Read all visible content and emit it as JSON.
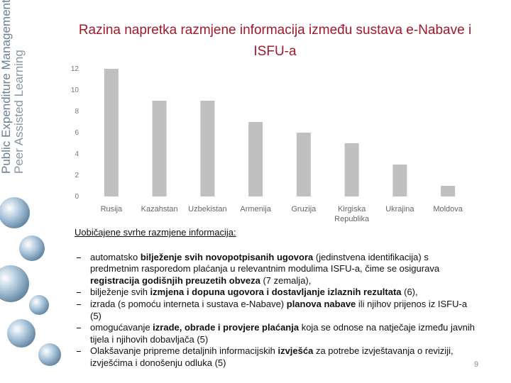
{
  "sidebar": {
    "line1": "Public Expenditure Management",
    "line2": "Peer Assisted Learning"
  },
  "chart_data": {
    "type": "bar",
    "title": "Razina napretka razmjene informacija između sustava e-Nabave i ISFU-a",
    "categories": [
      "Rusija",
      "Kazahstan",
      "Uzbekistan",
      "Armenija",
      "Gruzija",
      "Kirgiska Republika",
      "Ukrajina",
      "Moldova"
    ],
    "values": [
      12,
      9,
      9,
      7,
      6,
      5,
      3,
      1
    ],
    "color": "#c0c0c0",
    "ylim": [
      0,
      12
    ],
    "yticks": [
      0,
      2,
      4,
      6,
      8,
      10,
      12
    ],
    "grid": false
  },
  "body": {
    "heading": "Uobičajene svrhe razmjene informacija:",
    "items": [
      {
        "segments": [
          {
            "text": "automatsko ",
            "bold": false
          },
          {
            "text": "bilježenje svih novopotpisanih ugovora",
            "bold": true
          },
          {
            "text": " (jedinstvena identifikacija) s predmetnim rasporedom plaćanja u relevantnim modulima ISFU-a, čime se osigurava ",
            "bold": false
          },
          {
            "text": "registracija godišnjih preuzetih obveza",
            "bold": true
          },
          {
            "text": " (7 zemalja),",
            "bold": false
          }
        ]
      },
      {
        "segments": [
          {
            "text": "bilježenje svih ",
            "bold": false
          },
          {
            "text": "izmjena i dopuna ugovora i dostavljanje izlaznih rezultata",
            "bold": true
          },
          {
            "text": " (6),",
            "bold": false
          }
        ]
      },
      {
        "segments": [
          {
            "text": "izrada (s pomoću interneta i sustava e-Nabave) ",
            "bold": false
          },
          {
            "text": "planova nabave",
            "bold": true
          },
          {
            "text": " ili njihov prijenos iz ISFU-a (5)",
            "bold": false
          }
        ]
      },
      {
        "segments": [
          {
            "text": "omogućavanje ",
            "bold": false
          },
          {
            "text": "izrade, obrade i provjere plaćanja",
            "bold": true
          },
          {
            "text": " koja se odnose na natječaje između javnih tijela i njihovih dobavljača (5)",
            "bold": false
          }
        ]
      },
      {
        "segments": [
          {
            "text": "Olakšavanje pripreme detaljnih informacijskih ",
            "bold": false
          },
          {
            "text": "izvješća",
            "bold": true
          },
          {
            "text": " za potrebe izvještavanja o reviziji, izvješćima i donošenju odluka (5)",
            "bold": false
          }
        ]
      }
    ]
  },
  "page_number": "9"
}
